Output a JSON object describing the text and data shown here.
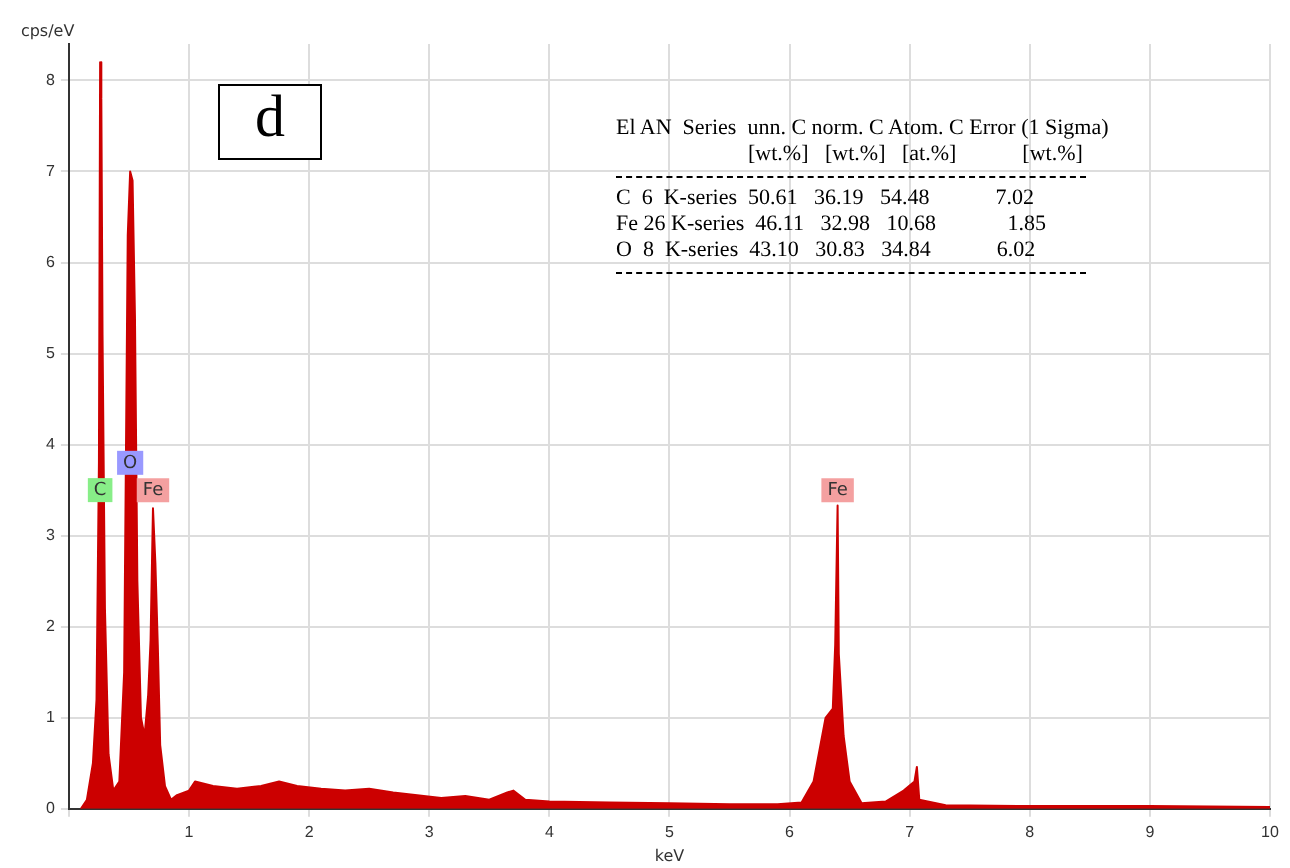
{
  "chart_data": {
    "type": "area",
    "xlabel": "keV",
    "ylabel": "cps/eV",
    "x": [
      0.1,
      0.15,
      0.2,
      0.23,
      0.25,
      0.26,
      0.27,
      0.28,
      0.3,
      0.33,
      0.37,
      0.42,
      0.46,
      0.49,
      0.51,
      0.53,
      0.55,
      0.57,
      0.6,
      0.63,
      0.66,
      0.68,
      0.7,
      0.72,
      0.74,
      0.76,
      0.8,
      0.85,
      0.9,
      1.0,
      1.05,
      1.2,
      1.4,
      1.6,
      1.75,
      1.9,
      2.1,
      2.3,
      2.5,
      2.7,
      2.9,
      3.1,
      3.3,
      3.5,
      3.65,
      3.7,
      3.8,
      4.0,
      4.5,
      5.0,
      5.5,
      5.9,
      6.1,
      6.2,
      6.3,
      6.36,
      6.38,
      6.4,
      6.41,
      6.45,
      6.5,
      6.6,
      6.8,
      6.95,
      7.04,
      7.06,
      7.08,
      7.3,
      8.0,
      9.0,
      10.0
    ],
    "series": [
      {
        "color": "#cc0000",
        "values": [
          0,
          0.1,
          0.5,
          1.2,
          3.8,
          8.2,
          7.8,
          5.2,
          2.2,
          0.6,
          0.2,
          0.3,
          1.5,
          6.3,
          7.0,
          6.9,
          5.4,
          2.5,
          1.0,
          0.8,
          1.25,
          1.85,
          3.3,
          2.7,
          1.8,
          0.7,
          0.25,
          0.1,
          0.15,
          0.2,
          0.3,
          0.25,
          0.22,
          0.25,
          0.3,
          0.25,
          0.22,
          0.2,
          0.22,
          0.18,
          0.15,
          0.12,
          0.14,
          0.1,
          0.18,
          0.2,
          0.1,
          0.08,
          0.07,
          0.06,
          0.05,
          0.05,
          0.07,
          0.3,
          1.0,
          1.1,
          1.8,
          3.33,
          1.7,
          0.8,
          0.3,
          0.06,
          0.08,
          0.2,
          0.3,
          0.46,
          0.1,
          0.04,
          0.03,
          0.03,
          0.02
        ]
      }
    ],
    "xlim": [
      0,
      10
    ],
    "xticks": [
      {
        "value": 0,
        "label": null
      },
      1,
      2,
      3,
      4,
      5,
      6,
      7,
      8,
      9,
      10
    ],
    "ylim": [
      0,
      8.4
    ],
    "yticks": [
      0,
      1,
      2,
      3,
      4,
      5,
      6,
      7,
      8
    ],
    "grid": true,
    "legend": false,
    "marker": "none",
    "annotations": [
      "d",
      "El AN  Series  unn. C norm. C Atom. C Error (1 Sigma)",
      "                        [wt.%]   [wt.%]   [at.%]            [wt.%]",
      "C  6  K-series  50.61   36.19   54.48            7.02",
      "Fe 26 K-series  46.11   32.98   10.68             1.85",
      "O  8  K-series  43.10   30.83   34.84            6.02",
      {
        "text": "C",
        "x": 0.26,
        "y": 3.5
      },
      {
        "text": "O",
        "x": 0.51,
        "y": 3.8
      },
      {
        "text": "Fe",
        "x": 0.7,
        "y": 3.5
      },
      {
        "text": "Fe",
        "x": 6.4,
        "y": 3.5
      }
    ]
  }
}
